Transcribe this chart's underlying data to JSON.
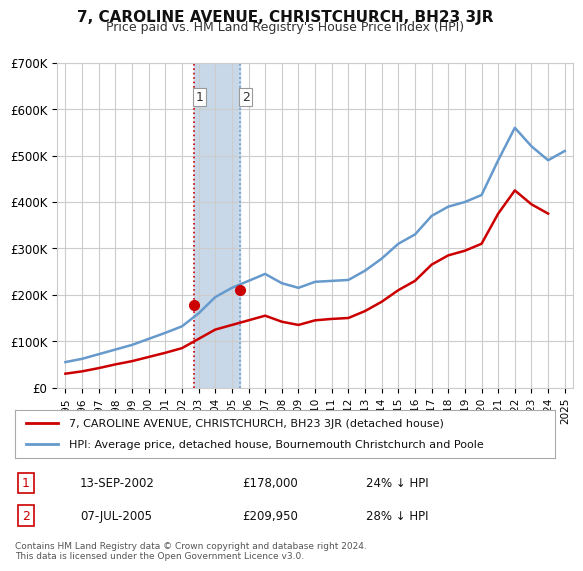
{
  "title": "7, CAROLINE AVENUE, CHRISTCHURCH, BH23 3JR",
  "subtitle": "Price paid vs. HM Land Registry's House Price Index (HPI)",
  "legend_label_red": "7, CAROLINE AVENUE, CHRISTCHURCH, BH23 3JR (detached house)",
  "legend_label_blue": "HPI: Average price, detached house, Bournemouth Christchurch and Poole",
  "footnote": "Contains HM Land Registry data © Crown copyright and database right 2024.\nThis data is licensed under the Open Government Licence v3.0.",
  "transactions": [
    {
      "num": 1,
      "date": "13-SEP-2002",
      "price": 178000,
      "pct": "24% ↓ HPI",
      "year": 2002.7
    },
    {
      "num": 2,
      "date": "07-JUL-2005",
      "price": 209950,
      "pct": "28% ↓ HPI",
      "year": 2005.5
    }
  ],
  "hpi_years": [
    1995,
    1996,
    1997,
    1998,
    1999,
    2000,
    2001,
    2002,
    2003,
    2004,
    2005,
    2006,
    2007,
    2008,
    2009,
    2010,
    2011,
    2012,
    2013,
    2014,
    2015,
    2016,
    2017,
    2018,
    2019,
    2020,
    2021,
    2022,
    2023,
    2024,
    2025
  ],
  "hpi_values": [
    55000,
    62000,
    72000,
    82000,
    92000,
    105000,
    118000,
    132000,
    160000,
    195000,
    215000,
    230000,
    245000,
    225000,
    215000,
    228000,
    230000,
    232000,
    252000,
    278000,
    310000,
    330000,
    370000,
    390000,
    400000,
    415000,
    490000,
    560000,
    520000,
    490000,
    510000
  ],
  "price_paid_years": [
    1995,
    1996,
    1997,
    1998,
    1999,
    2000,
    2001,
    2002,
    2003,
    2004,
    2005,
    2006,
    2007,
    2008,
    2009,
    2010,
    2011,
    2012,
    2013,
    2014,
    2015,
    2016,
    2017,
    2018,
    2019,
    2020,
    2021,
    2022,
    2023,
    2024
  ],
  "price_paid_values": [
    30000,
    35000,
    42000,
    50000,
    57000,
    66000,
    75000,
    85000,
    105000,
    125000,
    135000,
    145000,
    155000,
    142000,
    135000,
    145000,
    148000,
    150000,
    165000,
    185000,
    210000,
    230000,
    265000,
    285000,
    295000,
    310000,
    375000,
    425000,
    395000,
    375000
  ],
  "ylim": [
    0,
    700000
  ],
  "yticks": [
    0,
    100000,
    200000,
    300000,
    400000,
    500000,
    600000,
    700000
  ],
  "ytick_labels": [
    "£0",
    "£100K",
    "£200K",
    "£300K",
    "£400K",
    "£500K",
    "£600K",
    "£700K"
  ],
  "color_red": "#cc0000",
  "color_blue": "#6699cc",
  "color_shaded": "#c8d8e8",
  "background_color": "#ffffff",
  "grid_color": "#cccccc",
  "transaction1_year": 2002.7,
  "transaction1_price": 178000,
  "transaction2_year": 2005.5,
  "transaction2_price": 209950
}
